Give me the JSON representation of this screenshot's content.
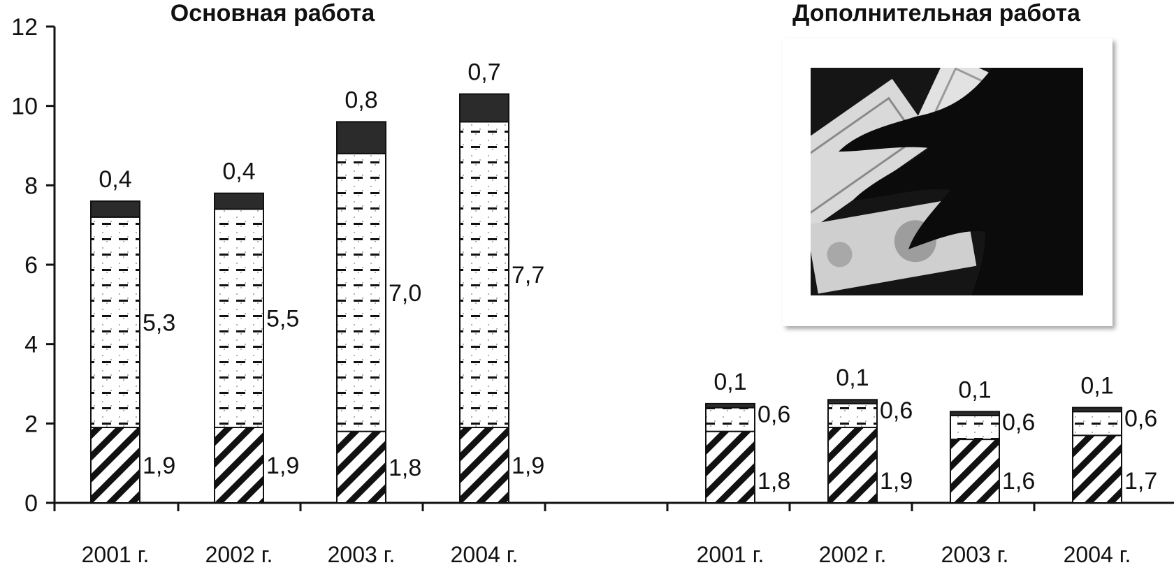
{
  "chart_data": [
    {
      "type": "bar",
      "stacked": true,
      "title": "Основная работа",
      "categories": [
        "2001 г.",
        "2002 г.",
        "2003 г.",
        "2004 г."
      ],
      "ylim": [
        0,
        12
      ],
      "yticks": [
        "0",
        "2",
        "4",
        "6",
        "8",
        "10",
        "12"
      ],
      "series": [
        {
          "pattern": "diagonal-hatch",
          "values": [
            1.9,
            1.9,
            1.8,
            1.9
          ],
          "labels": [
            "1,9",
            "1,9",
            "1,8",
            "1,9"
          ]
        },
        {
          "pattern": "dashed",
          "values": [
            5.3,
            5.5,
            7.0,
            7.7
          ],
          "labels": [
            "5,3",
            "5,5",
            "7,0",
            "7,7"
          ]
        },
        {
          "pattern": "solid-black",
          "values": [
            0.4,
            0.4,
            0.8,
            0.7
          ],
          "labels": [
            "0,4",
            "0,4",
            "0,8",
            "0,7"
          ]
        }
      ]
    },
    {
      "type": "bar",
      "stacked": true,
      "title": "Дополнительная работа",
      "categories": [
        "2001 г.",
        "2002 г.",
        "2003 г.",
        "2004 г."
      ],
      "ylim": [
        0,
        12
      ],
      "series": [
        {
          "pattern": "diagonal-hatch",
          "values": [
            1.8,
            1.9,
            1.6,
            1.7
          ],
          "labels": [
            "1,8",
            "1,9",
            "1,6",
            "1,7"
          ]
        },
        {
          "pattern": "dashed",
          "values": [
            0.6,
            0.6,
            0.6,
            0.6
          ],
          "labels": [
            "0,6",
            "0,6",
            "0,6",
            "0,6"
          ]
        },
        {
          "pattern": "solid-black",
          "values": [
            0.1,
            0.1,
            0.1,
            0.1
          ],
          "labels": [
            "0,1",
            "0,1",
            "0,1",
            "0,1"
          ]
        }
      ]
    }
  ],
  "colors": {
    "ink": "#111111",
    "solid_segment": "#2b2b2b",
    "photo_background": "#151515"
  },
  "photo": {
    "icon": "money-hand-photo"
  }
}
